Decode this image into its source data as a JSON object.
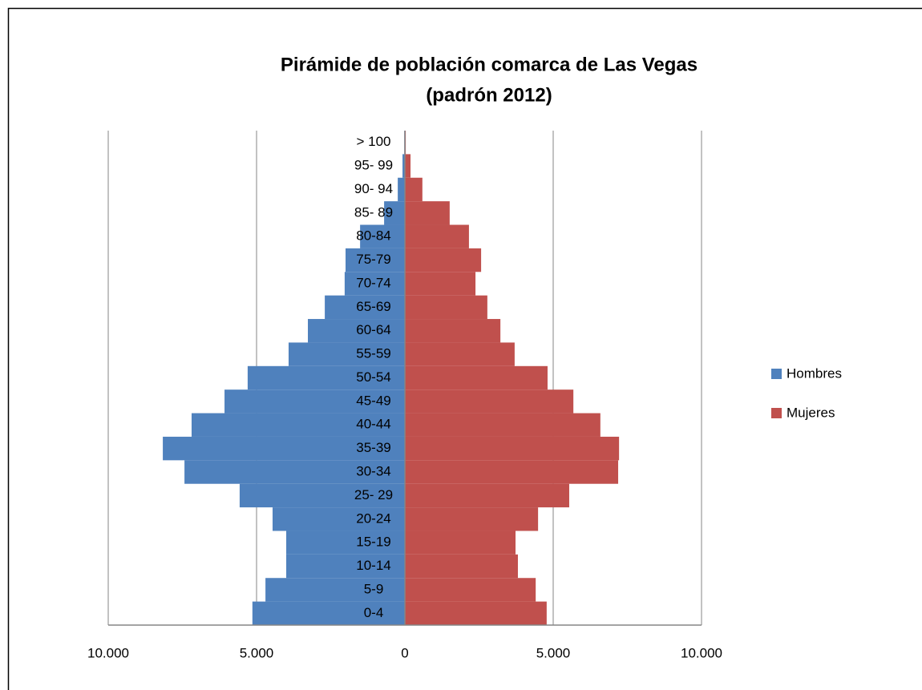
{
  "chart_data": {
    "type": "pyramid",
    "title": [
      "Pirámide de población comarca de Las Vegas",
      "(padrón 2012)"
    ],
    "categories": [
      "0-4",
      "5-9",
      "10-14",
      "15-19",
      "20-24",
      "25- 29",
      "30-34",
      "35-39",
      "40-44",
      "45-49",
      "50-54",
      "55-59",
      "60-64",
      "65-69",
      "70-74",
      "75-79",
      "80-84",
      "85- 89",
      "90- 94",
      "95- 99",
      "> 100"
    ],
    "series": [
      {
        "name": "Hombres",
        "color": "#4f81bd",
        "values": [
          -5140,
          -4700,
          -4000,
          -4000,
          -4460,
          -5570,
          -7430,
          -8160,
          -7190,
          -6080,
          -5300,
          -3920,
          -3270,
          -2700,
          -2030,
          -2000,
          -1510,
          -700,
          -240,
          -80,
          -20
        ]
      },
      {
        "name": "Mujeres",
        "color": "#c0504d",
        "values": [
          4780,
          4410,
          3810,
          3730,
          4490,
          5540,
          7190,
          7220,
          6590,
          5680,
          4810,
          3700,
          3220,
          2780,
          2380,
          2570,
          2160,
          1510,
          590,
          190,
          30
        ]
      }
    ],
    "xlim": [
      -10000,
      10000
    ],
    "xticks": [
      {
        "value": -10000,
        "label": "10.000"
      },
      {
        "value": -5000,
        "label": "5.000"
      },
      0,
      {
        "value": 5000,
        "label": "5.000"
      },
      {
        "value": 10000,
        "label": "10.000"
      }
    ],
    "negative_tick_color": "#ff0000",
    "grid": true,
    "legend": "right"
  }
}
